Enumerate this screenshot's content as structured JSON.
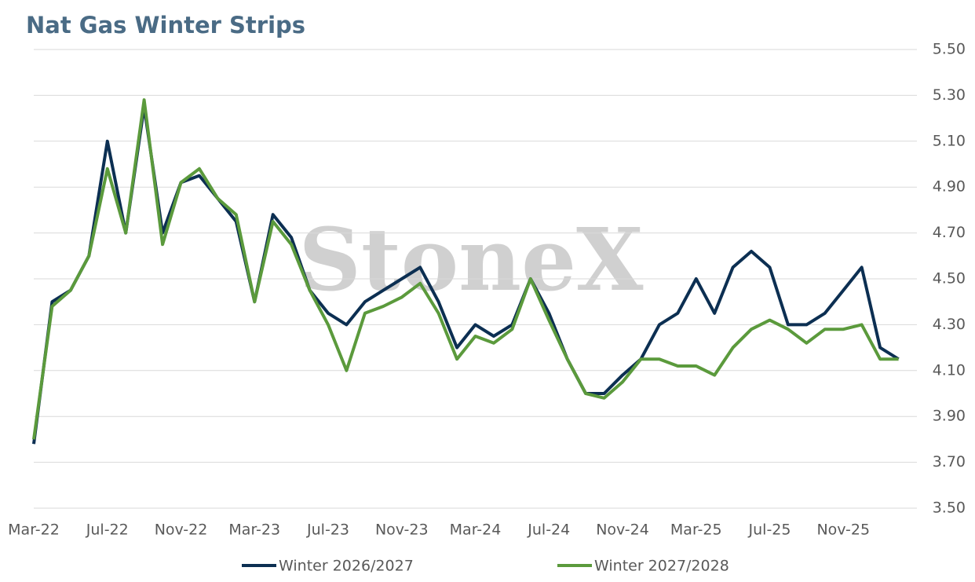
{
  "chart_data": {
    "type": "line",
    "title": "Nat Gas Winter Strips",
    "watermark": "StoneX",
    "x": [
      "2022-03",
      "2022-04",
      "2022-05",
      "2022-06",
      "2022-07",
      "2022-08",
      "2022-09",
      "2022-10",
      "2022-11",
      "2022-12",
      "2023-01",
      "2023-02",
      "2023-03",
      "2023-04",
      "2023-05",
      "2023-06",
      "2023-07",
      "2023-08",
      "2023-09",
      "2023-10",
      "2023-11",
      "2023-12",
      "2024-01",
      "2024-02",
      "2024-03",
      "2024-04",
      "2024-05",
      "2024-06",
      "2024-07",
      "2024-08",
      "2024-09",
      "2024-10",
      "2024-11",
      "2024-12",
      "2025-01",
      "2025-02",
      "2025-03",
      "2025-04",
      "2025-05",
      "2025-06",
      "2025-07",
      "2025-08",
      "2025-09",
      "2025-10",
      "2025-11",
      "2025-12",
      "2026-01",
      "2026-02"
    ],
    "series": [
      {
        "name": "Winter 2026/2027",
        "color": "#0c2f52",
        "values": [
          3.78,
          4.4,
          4.45,
          4.6,
          5.1,
          4.7,
          5.25,
          4.7,
          4.92,
          4.95,
          4.85,
          4.75,
          4.4,
          4.78,
          4.68,
          4.45,
          4.35,
          4.3,
          4.4,
          4.45,
          4.5,
          4.55,
          4.4,
          4.2,
          4.3,
          4.25,
          4.3,
          4.5,
          4.35,
          4.15,
          4.0,
          4.0,
          4.08,
          4.15,
          4.3,
          4.35,
          4.5,
          4.35,
          4.55,
          4.62,
          4.55,
          4.3,
          4.3,
          4.35,
          4.45,
          4.55,
          4.2,
          4.15
        ]
      },
      {
        "name": "Winter 2027/2028",
        "color": "#5b9a3c",
        "values": [
          3.8,
          4.38,
          4.45,
          4.6,
          4.98,
          4.7,
          5.28,
          4.65,
          4.92,
          4.98,
          4.85,
          4.78,
          4.4,
          4.75,
          4.65,
          4.45,
          4.3,
          4.1,
          4.35,
          4.38,
          4.42,
          4.48,
          4.35,
          4.15,
          4.25,
          4.22,
          4.28,
          4.5,
          4.32,
          4.15,
          4.0,
          3.98,
          4.05,
          4.15,
          4.15,
          4.12,
          4.12,
          4.08,
          4.2,
          4.28,
          4.32,
          4.28,
          4.22,
          4.28,
          4.28,
          4.3,
          4.15,
          4.15
        ]
      }
    ],
    "xlim": [
      "2022-03",
      "2026-03"
    ],
    "xticks": [
      {
        "value": "2022-03",
        "label": "Mar-22"
      },
      {
        "value": "2022-07",
        "label": "Jul-22"
      },
      {
        "value": "2022-11",
        "label": "Nov-22"
      },
      {
        "value": "2023-03",
        "label": "Mar-23"
      },
      {
        "value": "2023-07",
        "label": "Jul-23"
      },
      {
        "value": "2023-11",
        "label": "Nov-23"
      },
      {
        "value": "2024-03",
        "label": "Mar-24"
      },
      {
        "value": "2024-07",
        "label": "Jul-24"
      },
      {
        "value": "2024-11",
        "label": "Nov-24"
      },
      {
        "value": "2025-03",
        "label": "Mar-25"
      },
      {
        "value": "2025-07",
        "label": "Jul-25"
      },
      {
        "value": "2025-11",
        "label": "Nov-25"
      }
    ],
    "ylim": [
      3.5,
      5.5
    ],
    "yticks": [
      {
        "value": 3.5,
        "label": "3.50"
      },
      {
        "value": 3.7,
        "label": "3.70"
      },
      {
        "value": 3.9,
        "label": "3.90"
      },
      {
        "value": 4.1,
        "label": "4.10"
      },
      {
        "value": 4.3,
        "label": "4.30"
      },
      {
        "value": 4.5,
        "label": "4.50"
      },
      {
        "value": 4.7,
        "label": "4.70"
      },
      {
        "value": 4.9,
        "label": "4.90"
      },
      {
        "value": 5.1,
        "label": "5.10"
      },
      {
        "value": 5.3,
        "label": "5.30"
      },
      {
        "value": 5.5,
        "label": "5.50"
      }
    ],
    "grid": true,
    "legend": "bottom"
  }
}
